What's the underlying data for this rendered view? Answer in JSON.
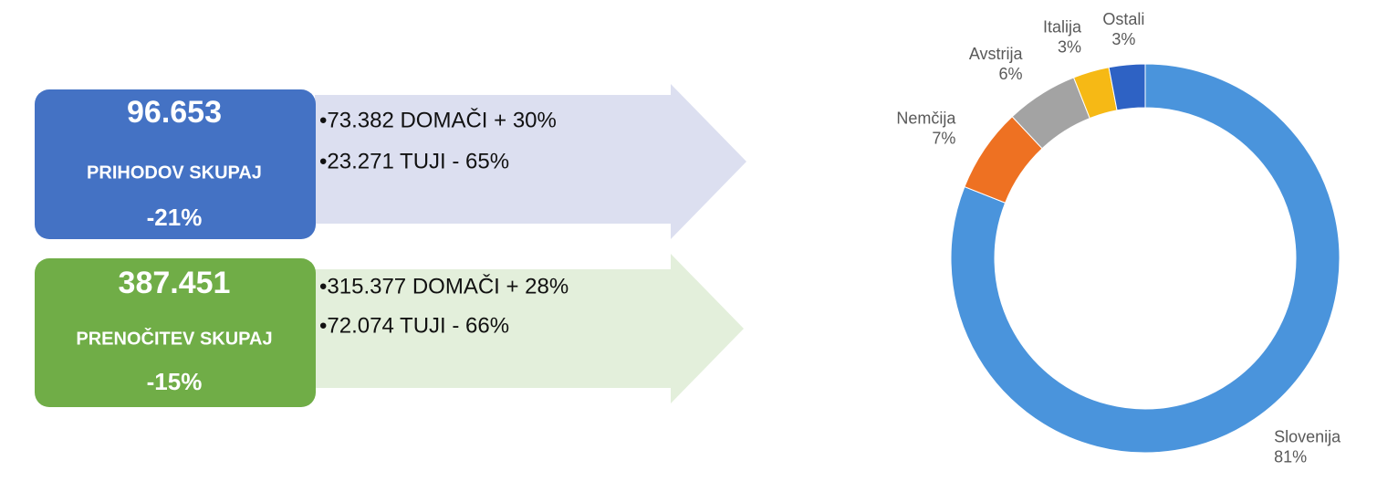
{
  "panels": [
    {
      "total": "96.653",
      "label": "PRIHODOV SKUPAJ",
      "change": "-21%",
      "details": [
        "•73.382 DOMAČI + 30%",
        "•23.271 TUJI - 65%"
      ]
    },
    {
      "total": "387.451",
      "label": "PRENOČITEV SKUPAJ",
      "change": "-15%",
      "details": [
        "•315.377 DOMAČI + 28%",
        "•72.074 TUJI - 66%"
      ]
    }
  ],
  "chart_data": {
    "type": "donut",
    "categories": [
      "Slovenija",
      "Nemčija",
      "Avstrija",
      "Italija",
      "Ostali"
    ],
    "values": [
      81,
      7,
      6,
      3,
      3
    ],
    "value_labels": [
      "81%",
      "7%",
      "6%",
      "3%",
      "3%"
    ],
    "colors": [
      "#4a94dc",
      "#ee7122",
      "#a3a3a3",
      "#f6b915",
      "#2e62c4"
    ]
  }
}
